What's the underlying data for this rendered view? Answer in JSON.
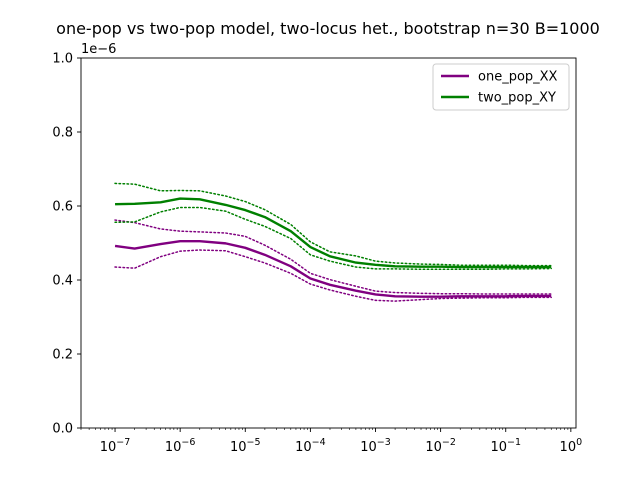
{
  "chart_data": {
    "type": "line",
    "title": "one-pop vs two-pop model, two-locus het., bootstrap n=30 B=1000",
    "xlabel": "",
    "ylabel": "",
    "xscale": "log",
    "xlim": [
      3e-08,
      1.2
    ],
    "ylim": [
      0,
      1.0
    ],
    "y_offset_text": "1e−6",
    "x_ticks": [
      {
        "value": 1e-07,
        "base": "10",
        "exp": "−7"
      },
      {
        "value": 1e-06,
        "base": "10",
        "exp": "−6"
      },
      {
        "value": 1e-05,
        "base": "10",
        "exp": "−5"
      },
      {
        "value": 0.0001,
        "base": "10",
        "exp": "−4"
      },
      {
        "value": 0.001,
        "base": "10",
        "exp": "−3"
      },
      {
        "value": 0.01,
        "base": "10",
        "exp": "−2"
      },
      {
        "value": 0.1,
        "base": "10",
        "exp": "−1"
      },
      {
        "value": 1,
        "base": "10",
        "exp": "0"
      }
    ],
    "y_ticks": [
      {
        "value": 0.0,
        "label": "0.0"
      },
      {
        "value": 0.2,
        "label": "0.2"
      },
      {
        "value": 0.4,
        "label": "0.4"
      },
      {
        "value": 0.6,
        "label": "0.6"
      },
      {
        "value": 0.8,
        "label": "0.8"
      },
      {
        "value": 1.0,
        "label": "1.0"
      }
    ],
    "grid": false,
    "legend_position": "upper right",
    "x": [
      1e-07,
      2e-07,
      5e-07,
      1e-06,
      2e-06,
      5e-06,
      1e-05,
      2e-05,
      5e-05,
      0.0001,
      0.0002,
      0.0005,
      0.001,
      0.002,
      0.005,
      0.01,
      0.02,
      0.05,
      0.1,
      0.2,
      0.5
    ],
    "series": [
      {
        "name": "one_pop_XX",
        "color": "#800080",
        "mean": [
          0.492,
          0.485,
          0.497,
          0.505,
          0.505,
          0.499,
          0.487,
          0.468,
          0.437,
          0.404,
          0.387,
          0.371,
          0.361,
          0.356,
          0.355,
          0.355,
          0.356,
          0.356,
          0.356,
          0.357,
          0.357
        ],
        "upper": [
          0.562,
          0.555,
          0.538,
          0.532,
          0.53,
          0.527,
          0.518,
          0.494,
          0.456,
          0.418,
          0.401,
          0.383,
          0.37,
          0.366,
          0.364,
          0.363,
          0.363,
          0.362,
          0.362,
          0.362,
          0.362
        ],
        "lower": [
          0.435,
          0.432,
          0.463,
          0.478,
          0.481,
          0.479,
          0.463,
          0.446,
          0.418,
          0.389,
          0.373,
          0.356,
          0.345,
          0.343,
          0.347,
          0.35,
          0.351,
          0.352,
          0.352,
          0.353,
          0.353
        ]
      },
      {
        "name": "two_pop_XY",
        "color": "#008000",
        "mean": [
          0.605,
          0.606,
          0.61,
          0.62,
          0.618,
          0.603,
          0.589,
          0.57,
          0.532,
          0.489,
          0.464,
          0.447,
          0.441,
          0.437,
          0.436,
          0.436,
          0.435,
          0.435,
          0.435,
          0.435,
          0.435
        ],
        "upper": [
          0.661,
          0.659,
          0.641,
          0.642,
          0.641,
          0.627,
          0.612,
          0.59,
          0.55,
          0.503,
          0.476,
          0.465,
          0.451,
          0.446,
          0.443,
          0.442,
          0.44,
          0.44,
          0.44,
          0.439,
          0.439
        ],
        "lower": [
          0.556,
          0.557,
          0.584,
          0.596,
          0.596,
          0.586,
          0.564,
          0.545,
          0.512,
          0.468,
          0.451,
          0.435,
          0.43,
          0.43,
          0.429,
          0.429,
          0.429,
          0.429,
          0.43,
          0.43,
          0.431
        ]
      }
    ]
  }
}
